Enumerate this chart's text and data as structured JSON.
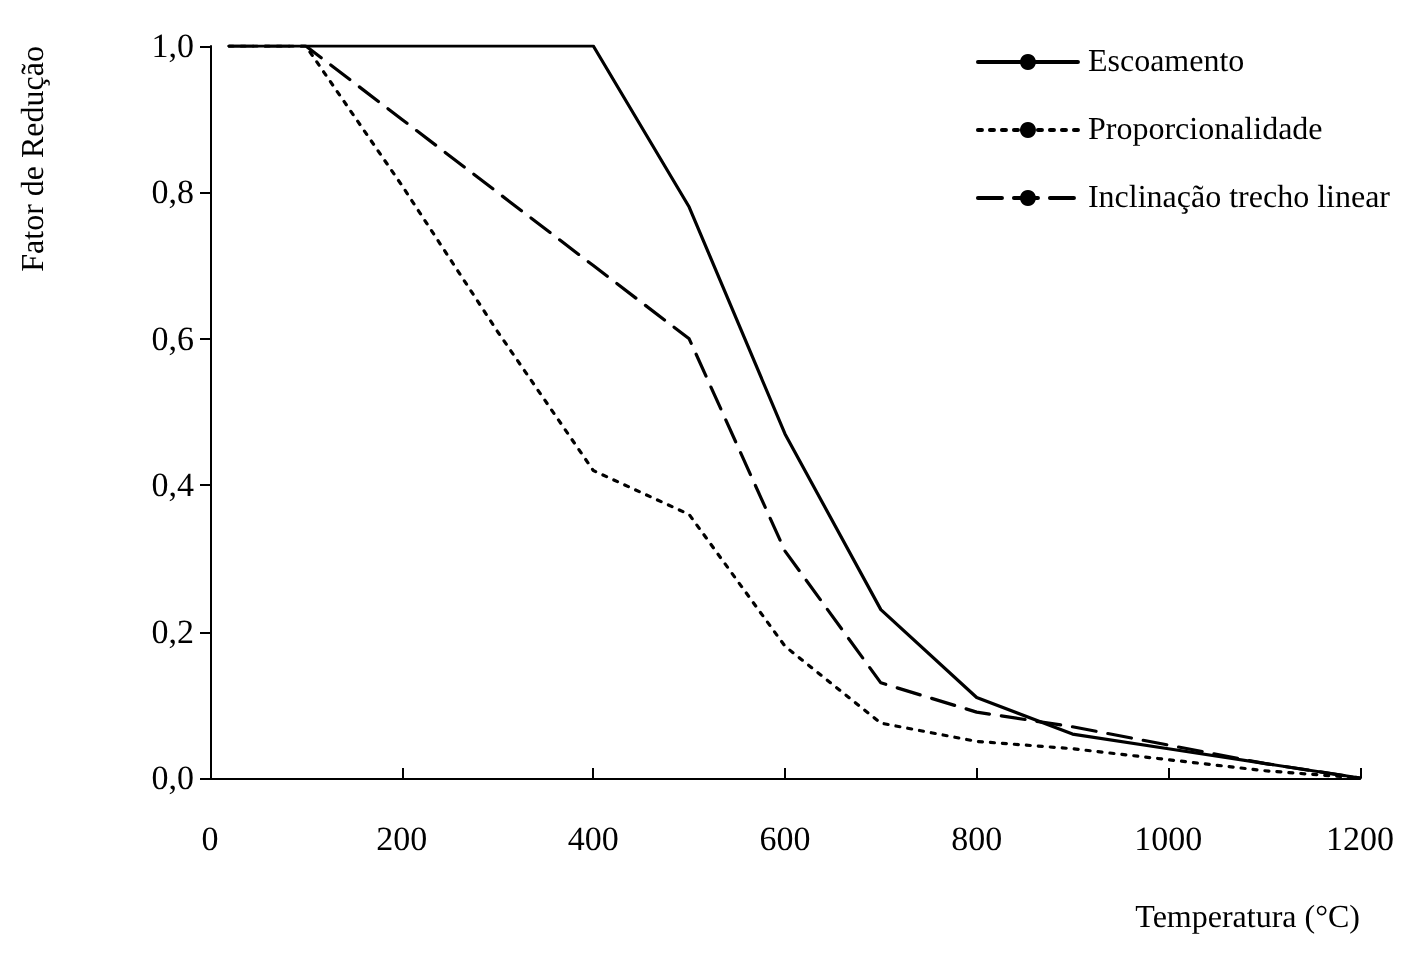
{
  "chart_data": {
    "type": "line",
    "xlabel": "Temperatura (°C)",
    "ylabel": "Fator de Redução",
    "x": [
      20,
      100,
      200,
      300,
      400,
      500,
      600,
      700,
      800,
      900,
      1000,
      1100,
      1200
    ],
    "series": [
      {
        "name": "Escoamento",
        "color": "#000000",
        "line_style": "solid",
        "values": [
          1,
          1,
          1,
          1,
          1,
          0.78,
          0.47,
          0.23,
          0.11,
          0.06,
          0.04,
          0.02,
          0
        ]
      },
      {
        "name": "Proporcionalidade",
        "color": "#000000",
        "line_style": "dotted",
        "values": [
          1,
          1,
          0.81,
          0.61,
          0.42,
          0.36,
          0.18,
          0.075,
          0.05,
          0.04,
          0.025,
          0.01,
          0
        ]
      },
      {
        "name": "Inclinação trecho linear",
        "color": "#000000",
        "line_style": "dashed",
        "values": [
          1,
          1,
          0.9,
          0.8,
          0.7,
          0.6,
          0.31,
          0.13,
          0.09,
          0.07,
          0.045,
          0.02,
          0
        ]
      }
    ],
    "xlim": [
      0,
      1200
    ],
    "xticks": [
      0,
      200,
      400,
      600,
      800,
      1000,
      1200
    ],
    "ylim": [
      0,
      1
    ],
    "yticks": [
      {
        "value": 0,
        "label": "0,0"
      },
      {
        "value": 0.2,
        "label": "0,2"
      },
      {
        "value": 0.4,
        "label": "0,4"
      },
      {
        "value": 0.6,
        "label": "0,6"
      },
      {
        "value": 0.8,
        "label": "0,8"
      },
      {
        "value": 1,
        "label": "1,0"
      }
    ],
    "grid": false,
    "legend": "top right",
    "marker": "none"
  }
}
